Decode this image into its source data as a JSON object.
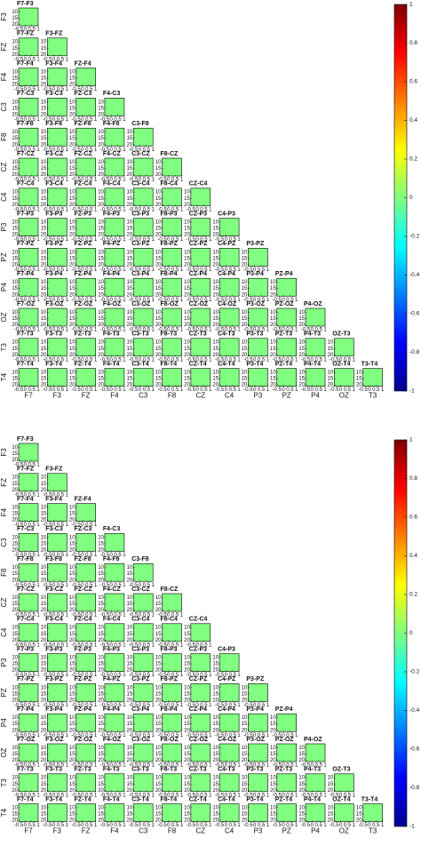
{
  "chart_data": [
    {
      "type": "heatmap-grid",
      "row_labels": [
        "F3",
        "FZ",
        "F4",
        "C3",
        "F8",
        "CZ",
        "C4",
        "P3",
        "PZ",
        "P4",
        "OZ",
        "T3",
        "T4"
      ],
      "col_labels": [
        "F7",
        "F3",
        "FZ",
        "F4",
        "C3",
        "F8",
        "CZ",
        "C4",
        "P3",
        "PZ",
        "P4",
        "OZ",
        "T3"
      ],
      "pair_labels": [
        [
          "F7-F3"
        ],
        [
          "F7-FZ",
          "F3-FZ"
        ],
        [
          "F7-F4",
          "F3-F4",
          "FZ-F4"
        ],
        [
          "F7-C3",
          "F3-C3",
          "FZ-C3",
          "F4-C3"
        ],
        [
          "F7-F8",
          "F3-F8",
          "FZ-F8",
          "F4-F8",
          "C3-F8"
        ],
        [
          "F7-CZ",
          "F3-CZ",
          "FZ-CZ",
          "F4-CZ",
          "C3-CZ",
          "F8-CZ"
        ],
        [
          "F7-C4",
          "F3-C4",
          "FZ-C4",
          "F4-C4",
          "C3-C4",
          "F8-C4",
          "CZ-C4"
        ],
        [
          "F7-P3",
          "F3-P3",
          "FZ-P3",
          "F4-P3",
          "C3-P3",
          "F8-P3",
          "CZ-P3",
          "C4-P3"
        ],
        [
          "F7-PZ",
          "F3-PZ",
          "FZ-PZ",
          "F4-PZ",
          "C3-PZ",
          "F8-PZ",
          "CZ-PZ",
          "C4-PZ",
          "P3-PZ"
        ],
        [
          "F7-P4",
          "F3-P4",
          "FZ-P4",
          "F4-P4",
          "C3-P4",
          "F8-P4",
          "CZ-P4",
          "C4-P4",
          "P3-P4",
          "PZ-P4"
        ],
        [
          "F7-OZ",
          "F3-OZ",
          "FZ-OZ",
          "F4-OZ",
          "C3-OZ",
          "F8-OZ",
          "CZ-OZ",
          "C4-OZ",
          "P3-OZ",
          "PZ-OZ",
          "P4-OZ"
        ],
        [
          "F7-T3",
          "F3-T3",
          "FZ-T3",
          "F4-T3",
          "C3-T3",
          "F8-T3",
          "CZ-T3",
          "C4-T3",
          "P3-T3",
          "PZ-T3",
          "P4-T3",
          "OZ-T3"
        ],
        [
          "F7-T4",
          "F3-T4",
          "FZ-T4",
          "F4-T4",
          "C3-T4",
          "F8-T4",
          "CZ-T4",
          "C4-T4",
          "P3-T4",
          "PZ-T4",
          "P4-T4",
          "OZ-T4",
          "T3-T4"
        ]
      ],
      "cell_xlim": [
        -0.5,
        1
      ],
      "cell_xticks": [
        -0.5,
        0,
        0.5,
        1
      ],
      "cell_ylim": [
        7,
        21
      ],
      "cell_yticks": [
        10,
        15,
        20
      ],
      "cell_color": "#80ff80",
      "colorbar_lim": [
        -1,
        1
      ],
      "colorbar_ticks": [
        1,
        0.8,
        0.6,
        0.4,
        0.2,
        0,
        -0.2,
        -0.4,
        -0.6,
        -0.8,
        -1
      ]
    },
    {
      "type": "heatmap-grid",
      "row_labels": [
        "F3",
        "FZ",
        "F4",
        "C3",
        "F8",
        "CZ",
        "C4",
        "P3",
        "PZ",
        "P4",
        "OZ",
        "T3",
        "T4"
      ],
      "col_labels": [
        "F7",
        "F3",
        "FZ",
        "F4",
        "C3",
        "F8",
        "CZ",
        "C4",
        "P3",
        "PZ",
        "P4",
        "OZ",
        "T3"
      ],
      "pair_labels": [
        [
          "F7-F3"
        ],
        [
          "F7-FZ",
          "F3-FZ"
        ],
        [
          "F7-F4",
          "F3-F4",
          "FZ-F4"
        ],
        [
          "F7-C3",
          "F3-C3",
          "FZ-C3",
          "F4-C3"
        ],
        [
          "F7-F8",
          "F3-F8",
          "FZ-F8",
          "F4-F8",
          "C3-F8"
        ],
        [
          "F7-CZ",
          "F3-CZ",
          "FZ-CZ",
          "F4-CZ",
          "C3-CZ",
          "F8-CZ"
        ],
        [
          "F7-C4",
          "F3-C4",
          "FZ-C4",
          "F4-C4",
          "C3-C4",
          "F8-C4",
          "CZ-C4"
        ],
        [
          "F7-P3",
          "F3-P3",
          "FZ-P3",
          "F4-P3",
          "C3-P3",
          "F8-P3",
          "CZ-P3",
          "C4-P3"
        ],
        [
          "F7-PZ",
          "F3-PZ",
          "FZ-PZ",
          "F4-PZ",
          "C3-PZ",
          "F8-PZ",
          "CZ-PZ",
          "C4-PZ",
          "P3-PZ"
        ],
        [
          "F7-P4",
          "F3-P4",
          "FZ-P4",
          "F4-P4",
          "C3-P4",
          "F8-P4",
          "CZ-P4",
          "C4-P4",
          "P3-P4",
          "PZ-P4"
        ],
        [
          "F7-OZ",
          "F3-OZ",
          "FZ-OZ",
          "F4-OZ",
          "C3-OZ",
          "F8-OZ",
          "CZ-OZ",
          "C4-OZ",
          "P3-OZ",
          "PZ-OZ",
          "P4-OZ"
        ],
        [
          "F7-T3",
          "F3-T3",
          "FZ-T3",
          "F4-T3",
          "C3-T3",
          "F8-T3",
          "CZ-T3",
          "C4-T3",
          "P3-T3",
          "PZ-T3",
          "P4-T3",
          "OZ-T3"
        ],
        [
          "F7-T4",
          "F3-T4",
          "FZ-T4",
          "F4-T4",
          "C3-T4",
          "F8-T4",
          "CZ-T4",
          "C4-T4",
          "P3-T4",
          "PZ-T4",
          "P4-T4",
          "OZ-T4",
          "T3-T4"
        ]
      ],
      "cell_xlim": [
        -0.5,
        1
      ],
      "cell_xticks": [
        -0.5,
        0,
        0.5,
        1
      ],
      "cell_ylim": [
        7,
        21
      ],
      "cell_yticks": [
        10,
        15,
        20
      ],
      "cell_color": "#80ff80",
      "colorbar_lim": [
        -1,
        1
      ],
      "colorbar_ticks": [
        1,
        0.8,
        0.6,
        0.4,
        0.2,
        0,
        -0.2,
        -0.4,
        -0.6,
        -0.8,
        -1
      ]
    }
  ]
}
